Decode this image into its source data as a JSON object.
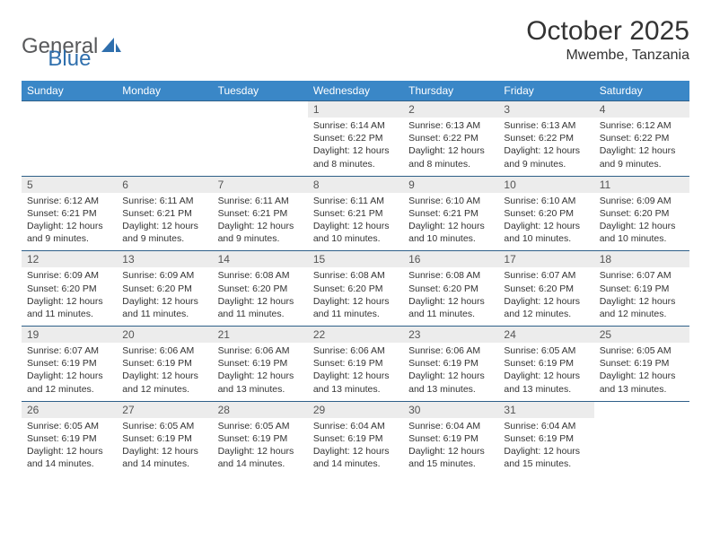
{
  "brand": {
    "word1": "General",
    "word2": "Blue",
    "logo_color": "#2f6fad",
    "text_color": "#58595b"
  },
  "title": "October 2025",
  "subtitle": "Mwembe, Tanzania",
  "colors": {
    "header_bg": "#3a87c7",
    "header_text": "#ffffff",
    "daynum_bg": "#ececec",
    "rule": "#2f6089",
    "body_text": "#333333"
  },
  "fontsize": {
    "title": 30,
    "subtitle": 16,
    "header": 12,
    "daynum": 12,
    "body": 10.5
  },
  "weekdays": [
    "Sunday",
    "Monday",
    "Tuesday",
    "Wednesday",
    "Thursday",
    "Friday",
    "Saturday"
  ],
  "weeks": [
    [
      null,
      null,
      null,
      {
        "n": "1",
        "sunrise": "Sunrise: 6:14 AM",
        "sunset": "Sunset: 6:22 PM",
        "daylight": "Daylight: 12 hours and 8 minutes."
      },
      {
        "n": "2",
        "sunrise": "Sunrise: 6:13 AM",
        "sunset": "Sunset: 6:22 PM",
        "daylight": "Daylight: 12 hours and 8 minutes."
      },
      {
        "n": "3",
        "sunrise": "Sunrise: 6:13 AM",
        "sunset": "Sunset: 6:22 PM",
        "daylight": "Daylight: 12 hours and 9 minutes."
      },
      {
        "n": "4",
        "sunrise": "Sunrise: 6:12 AM",
        "sunset": "Sunset: 6:22 PM",
        "daylight": "Daylight: 12 hours and 9 minutes."
      }
    ],
    [
      {
        "n": "5",
        "sunrise": "Sunrise: 6:12 AM",
        "sunset": "Sunset: 6:21 PM",
        "daylight": "Daylight: 12 hours and 9 minutes."
      },
      {
        "n": "6",
        "sunrise": "Sunrise: 6:11 AM",
        "sunset": "Sunset: 6:21 PM",
        "daylight": "Daylight: 12 hours and 9 minutes."
      },
      {
        "n": "7",
        "sunrise": "Sunrise: 6:11 AM",
        "sunset": "Sunset: 6:21 PM",
        "daylight": "Daylight: 12 hours and 9 minutes."
      },
      {
        "n": "8",
        "sunrise": "Sunrise: 6:11 AM",
        "sunset": "Sunset: 6:21 PM",
        "daylight": "Daylight: 12 hours and 10 minutes."
      },
      {
        "n": "9",
        "sunrise": "Sunrise: 6:10 AM",
        "sunset": "Sunset: 6:21 PM",
        "daylight": "Daylight: 12 hours and 10 minutes."
      },
      {
        "n": "10",
        "sunrise": "Sunrise: 6:10 AM",
        "sunset": "Sunset: 6:20 PM",
        "daylight": "Daylight: 12 hours and 10 minutes."
      },
      {
        "n": "11",
        "sunrise": "Sunrise: 6:09 AM",
        "sunset": "Sunset: 6:20 PM",
        "daylight": "Daylight: 12 hours and 10 minutes."
      }
    ],
    [
      {
        "n": "12",
        "sunrise": "Sunrise: 6:09 AM",
        "sunset": "Sunset: 6:20 PM",
        "daylight": "Daylight: 12 hours and 11 minutes."
      },
      {
        "n": "13",
        "sunrise": "Sunrise: 6:09 AM",
        "sunset": "Sunset: 6:20 PM",
        "daylight": "Daylight: 12 hours and 11 minutes."
      },
      {
        "n": "14",
        "sunrise": "Sunrise: 6:08 AM",
        "sunset": "Sunset: 6:20 PM",
        "daylight": "Daylight: 12 hours and 11 minutes."
      },
      {
        "n": "15",
        "sunrise": "Sunrise: 6:08 AM",
        "sunset": "Sunset: 6:20 PM",
        "daylight": "Daylight: 12 hours and 11 minutes."
      },
      {
        "n": "16",
        "sunrise": "Sunrise: 6:08 AM",
        "sunset": "Sunset: 6:20 PM",
        "daylight": "Daylight: 12 hours and 11 minutes."
      },
      {
        "n": "17",
        "sunrise": "Sunrise: 6:07 AM",
        "sunset": "Sunset: 6:20 PM",
        "daylight": "Daylight: 12 hours and 12 minutes."
      },
      {
        "n": "18",
        "sunrise": "Sunrise: 6:07 AM",
        "sunset": "Sunset: 6:19 PM",
        "daylight": "Daylight: 12 hours and 12 minutes."
      }
    ],
    [
      {
        "n": "19",
        "sunrise": "Sunrise: 6:07 AM",
        "sunset": "Sunset: 6:19 PM",
        "daylight": "Daylight: 12 hours and 12 minutes."
      },
      {
        "n": "20",
        "sunrise": "Sunrise: 6:06 AM",
        "sunset": "Sunset: 6:19 PM",
        "daylight": "Daylight: 12 hours and 12 minutes."
      },
      {
        "n": "21",
        "sunrise": "Sunrise: 6:06 AM",
        "sunset": "Sunset: 6:19 PM",
        "daylight": "Daylight: 12 hours and 13 minutes."
      },
      {
        "n": "22",
        "sunrise": "Sunrise: 6:06 AM",
        "sunset": "Sunset: 6:19 PM",
        "daylight": "Daylight: 12 hours and 13 minutes."
      },
      {
        "n": "23",
        "sunrise": "Sunrise: 6:06 AM",
        "sunset": "Sunset: 6:19 PM",
        "daylight": "Daylight: 12 hours and 13 minutes."
      },
      {
        "n": "24",
        "sunrise": "Sunrise: 6:05 AM",
        "sunset": "Sunset: 6:19 PM",
        "daylight": "Daylight: 12 hours and 13 minutes."
      },
      {
        "n": "25",
        "sunrise": "Sunrise: 6:05 AM",
        "sunset": "Sunset: 6:19 PM",
        "daylight": "Daylight: 12 hours and 13 minutes."
      }
    ],
    [
      {
        "n": "26",
        "sunrise": "Sunrise: 6:05 AM",
        "sunset": "Sunset: 6:19 PM",
        "daylight": "Daylight: 12 hours and 14 minutes."
      },
      {
        "n": "27",
        "sunrise": "Sunrise: 6:05 AM",
        "sunset": "Sunset: 6:19 PM",
        "daylight": "Daylight: 12 hours and 14 minutes."
      },
      {
        "n": "28",
        "sunrise": "Sunrise: 6:05 AM",
        "sunset": "Sunset: 6:19 PM",
        "daylight": "Daylight: 12 hours and 14 minutes."
      },
      {
        "n": "29",
        "sunrise": "Sunrise: 6:04 AM",
        "sunset": "Sunset: 6:19 PM",
        "daylight": "Daylight: 12 hours and 14 minutes."
      },
      {
        "n": "30",
        "sunrise": "Sunrise: 6:04 AM",
        "sunset": "Sunset: 6:19 PM",
        "daylight": "Daylight: 12 hours and 15 minutes."
      },
      {
        "n": "31",
        "sunrise": "Sunrise: 6:04 AM",
        "sunset": "Sunset: 6:19 PM",
        "daylight": "Daylight: 12 hours and 15 minutes."
      },
      null
    ]
  ]
}
